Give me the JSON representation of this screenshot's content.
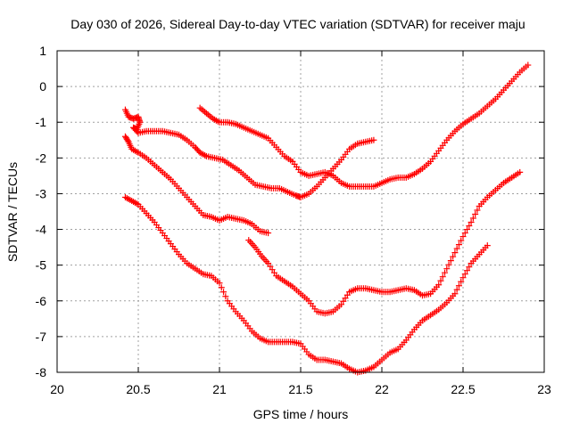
{
  "chart_data": {
    "type": "scatter",
    "title": "Day 030 of 2026, Sidereal Day-to-day VTEC variation (SDTVAR) for receiver maju",
    "xlabel": "GPS time / hours",
    "ylabel": "SDTVAR / TECUs",
    "xlim": [
      20,
      23
    ],
    "ylim": [
      -8,
      1
    ],
    "xticks": [
      "20",
      "20.5",
      "21",
      "21.5",
      "22",
      "22.5",
      "23"
    ],
    "yticks": [
      "-8",
      "-7",
      "-6",
      "-5",
      "-4",
      "-3",
      "-2",
      "-1",
      "0",
      "1"
    ],
    "grid": true,
    "marker": "+",
    "marker_color": "#ff0000",
    "series": [
      {
        "points": [
          [
            20.42,
            -0.65
          ],
          [
            20.44,
            -0.85
          ],
          [
            20.47,
            -0.9
          ],
          [
            20.5,
            -0.85
          ],
          [
            20.51,
            -1.0
          ],
          [
            20.49,
            -1.2
          ],
          [
            20.47,
            -1.15
          ],
          [
            20.5,
            -1.3
          ],
          [
            20.55,
            -1.25
          ],
          [
            20.6,
            -1.25
          ],
          [
            20.65,
            -1.25
          ],
          [
            20.7,
            -1.3
          ],
          [
            20.75,
            -1.35
          ],
          [
            20.8,
            -1.5
          ],
          [
            20.85,
            -1.7
          ],
          [
            20.88,
            -1.85
          ],
          [
            20.92,
            -1.95
          ],
          [
            20.97,
            -2.0
          ],
          [
            21.02,
            -2.05
          ],
          [
            21.07,
            -2.2
          ],
          [
            21.12,
            -2.35
          ],
          [
            21.17,
            -2.55
          ],
          [
            21.22,
            -2.75
          ],
          [
            21.27,
            -2.8
          ],
          [
            21.32,
            -2.85
          ],
          [
            21.37,
            -2.85
          ],
          [
            21.42,
            -2.95
          ],
          [
            21.47,
            -3.05
          ],
          [
            21.5,
            -3.1
          ],
          [
            21.55,
            -3.0
          ],
          [
            21.6,
            -2.8
          ],
          [
            21.65,
            -2.55
          ],
          [
            21.7,
            -2.3
          ],
          [
            21.75,
            -2.05
          ],
          [
            21.8,
            -1.75
          ],
          [
            21.85,
            -1.6
          ],
          [
            21.9,
            -1.55
          ],
          [
            21.95,
            -1.5
          ]
        ]
      },
      {
        "points": [
          [
            20.88,
            -0.6
          ],
          [
            20.92,
            -0.75
          ],
          [
            20.96,
            -0.9
          ],
          [
            21.0,
            -1.0
          ],
          [
            21.05,
            -1.0
          ],
          [
            21.1,
            -1.05
          ],
          [
            21.15,
            -1.15
          ],
          [
            21.2,
            -1.25
          ],
          [
            21.25,
            -1.35
          ],
          [
            21.3,
            -1.45
          ],
          [
            21.35,
            -1.7
          ],
          [
            21.4,
            -1.95
          ],
          [
            21.45,
            -2.1
          ],
          [
            21.5,
            -2.4
          ],
          [
            21.55,
            -2.5
          ],
          [
            21.6,
            -2.45
          ],
          [
            21.65,
            -2.4
          ],
          [
            21.7,
            -2.5
          ],
          [
            21.75,
            -2.7
          ],
          [
            21.8,
            -2.8
          ],
          [
            21.85,
            -2.8
          ],
          [
            21.9,
            -2.8
          ],
          [
            21.95,
            -2.8
          ],
          [
            22.0,
            -2.7
          ],
          [
            22.05,
            -2.6
          ],
          [
            22.1,
            -2.55
          ],
          [
            22.15,
            -2.55
          ],
          [
            22.2,
            -2.45
          ],
          [
            22.25,
            -2.3
          ],
          [
            22.3,
            -2.1
          ],
          [
            22.35,
            -1.8
          ],
          [
            22.4,
            -1.5
          ],
          [
            22.45,
            -1.25
          ],
          [
            22.5,
            -1.05
          ],
          [
            22.55,
            -0.9
          ],
          [
            22.6,
            -0.75
          ],
          [
            22.65,
            -0.55
          ],
          [
            22.7,
            -0.35
          ],
          [
            22.75,
            -0.1
          ],
          [
            22.8,
            0.15
          ],
          [
            22.85,
            0.4
          ],
          [
            22.9,
            0.6
          ]
        ]
      },
      {
        "points": [
          [
            20.42,
            -1.4
          ],
          [
            20.44,
            -1.55
          ],
          [
            20.46,
            -1.75
          ],
          [
            20.5,
            -1.85
          ],
          [
            20.55,
            -2.0
          ],
          [
            20.6,
            -2.2
          ],
          [
            20.65,
            -2.4
          ],
          [
            20.7,
            -2.6
          ],
          [
            20.75,
            -2.85
          ],
          [
            20.8,
            -3.1
          ],
          [
            20.85,
            -3.35
          ],
          [
            20.9,
            -3.6
          ],
          [
            20.95,
            -3.65
          ],
          [
            21.0,
            -3.75
          ],
          [
            21.05,
            -3.65
          ],
          [
            21.1,
            -3.7
          ],
          [
            21.15,
            -3.75
          ],
          [
            21.2,
            -3.85
          ],
          [
            21.25,
            -4.05
          ],
          [
            21.3,
            -4.1
          ]
        ]
      },
      {
        "points": [
          [
            20.42,
            -3.1
          ],
          [
            20.46,
            -3.2
          ],
          [
            20.5,
            -3.3
          ],
          [
            20.55,
            -3.55
          ],
          [
            20.6,
            -3.8
          ],
          [
            20.65,
            -4.1
          ],
          [
            20.7,
            -4.4
          ],
          [
            20.75,
            -4.7
          ],
          [
            20.8,
            -4.95
          ],
          [
            20.85,
            -5.1
          ],
          [
            20.9,
            -5.25
          ],
          [
            20.95,
            -5.3
          ],
          [
            21.0,
            -5.5
          ],
          [
            21.05,
            -6.0
          ],
          [
            21.1,
            -6.3
          ],
          [
            21.15,
            -6.55
          ],
          [
            21.2,
            -6.85
          ],
          [
            21.25,
            -7.05
          ],
          [
            21.3,
            -7.15
          ],
          [
            21.35,
            -7.15
          ],
          [
            21.4,
            -7.15
          ],
          [
            21.45,
            -7.15
          ],
          [
            21.5,
            -7.2
          ],
          [
            21.55,
            -7.5
          ],
          [
            21.6,
            -7.65
          ],
          [
            21.65,
            -7.65
          ],
          [
            21.7,
            -7.7
          ],
          [
            21.75,
            -7.75
          ],
          [
            21.8,
            -7.9
          ],
          [
            21.85,
            -8.0
          ],
          [
            21.9,
            -7.95
          ],
          [
            21.95,
            -7.85
          ],
          [
            22.0,
            -7.65
          ],
          [
            22.05,
            -7.45
          ],
          [
            22.1,
            -7.35
          ],
          [
            22.15,
            -7.1
          ],
          [
            22.2,
            -6.8
          ],
          [
            22.25,
            -6.55
          ],
          [
            22.3,
            -6.4
          ],
          [
            22.35,
            -6.25
          ],
          [
            22.4,
            -6.05
          ],
          [
            22.45,
            -5.8
          ],
          [
            22.5,
            -5.35
          ],
          [
            22.55,
            -4.95
          ],
          [
            22.6,
            -4.7
          ],
          [
            22.65,
            -4.45
          ]
        ]
      },
      {
        "points": [
          [
            21.18,
            -4.3
          ],
          [
            21.22,
            -4.5
          ],
          [
            21.26,
            -4.75
          ],
          [
            21.3,
            -4.95
          ],
          [
            21.35,
            -5.3
          ],
          [
            21.4,
            -5.45
          ],
          [
            21.45,
            -5.6
          ],
          [
            21.5,
            -5.8
          ],
          [
            21.55,
            -6.0
          ],
          [
            21.6,
            -6.3
          ],
          [
            21.65,
            -6.35
          ],
          [
            21.7,
            -6.3
          ],
          [
            21.75,
            -6.1
          ],
          [
            21.8,
            -5.75
          ],
          [
            21.85,
            -5.65
          ],
          [
            21.9,
            -5.65
          ],
          [
            21.95,
            -5.7
          ],
          [
            22.0,
            -5.75
          ],
          [
            22.05,
            -5.75
          ],
          [
            22.1,
            -5.7
          ],
          [
            22.15,
            -5.65
          ],
          [
            22.2,
            -5.7
          ],
          [
            22.25,
            -5.85
          ],
          [
            22.3,
            -5.8
          ],
          [
            22.35,
            -5.55
          ],
          [
            22.4,
            -5.1
          ],
          [
            22.45,
            -4.65
          ],
          [
            22.5,
            -4.2
          ],
          [
            22.55,
            -3.8
          ],
          [
            22.6,
            -3.35
          ],
          [
            22.65,
            -3.1
          ],
          [
            22.7,
            -2.9
          ],
          [
            22.75,
            -2.7
          ],
          [
            22.8,
            -2.55
          ],
          [
            22.85,
            -2.4
          ]
        ]
      }
    ]
  }
}
